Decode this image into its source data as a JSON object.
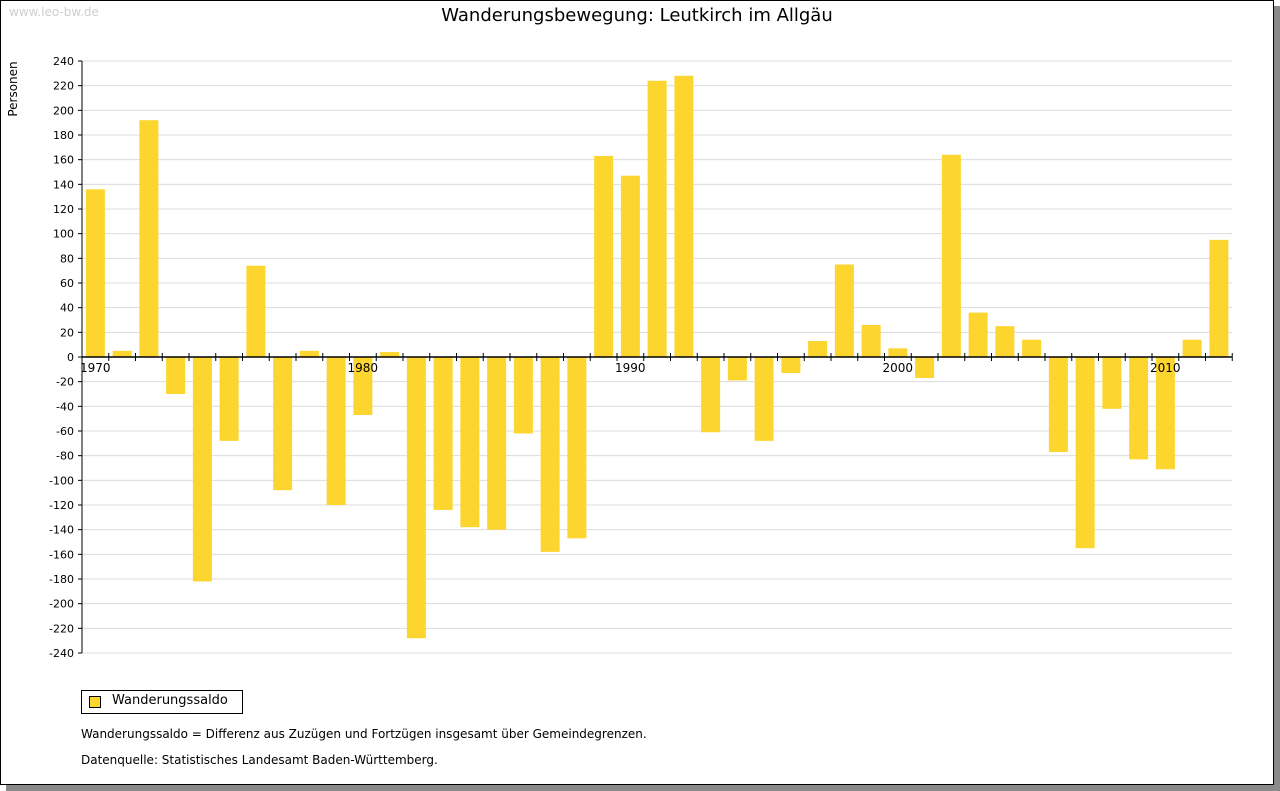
{
  "watermark": "www.leo-bw.de",
  "chart_data": {
    "type": "bar",
    "title": "Wanderungsbewegung: Leutkirch im Allgäu",
    "ylabel": "Personen",
    "xlabel": "",
    "ylim": [
      -240,
      240
    ],
    "ytick_step": 20,
    "yticks": [
      240,
      220,
      200,
      180,
      160,
      140,
      120,
      100,
      80,
      60,
      40,
      20,
      0,
      -20,
      -40,
      -60,
      -80,
      -100,
      -120,
      -140,
      -160,
      -180,
      -200,
      -220,
      -240
    ],
    "x_tick_labels": [
      "1970",
      "1980",
      "1990",
      "2000",
      "2010"
    ],
    "x_start_year": 1970,
    "grid": true,
    "bar_color": "#FDD52F",
    "series": [
      {
        "name": "Wanderungssaldo",
        "years": [
          1970,
          1971,
          1972,
          1973,
          1974,
          1975,
          1976,
          1977,
          1978,
          1979,
          1980,
          1981,
          1982,
          1983,
          1984,
          1985,
          1986,
          1987,
          1988,
          1989,
          1990,
          1991,
          1992,
          1993,
          1994,
          1995,
          1996,
          1997,
          1998,
          1999,
          2000,
          2001,
          2002,
          2003,
          2004,
          2005,
          2006,
          2007,
          2008,
          2009,
          2010,
          2011,
          2012
        ],
        "values": [
          136,
          5,
          192,
          -30,
          -182,
          -68,
          74,
          -108,
          5,
          -120,
          -47,
          4,
          -228,
          -124,
          -138,
          -140,
          -62,
          -158,
          -147,
          163,
          147,
          224,
          228,
          -61,
          -19,
          -68,
          -13,
          13,
          75,
          26,
          7,
          -17,
          164,
          36,
          25,
          14,
          -77,
          -155,
          -42,
          -83,
          -91,
          14,
          95
        ]
      }
    ],
    "legend_position": "bottom-left"
  },
  "legend": {
    "label": "Wanderungssaldo",
    "color": "#FDD52F"
  },
  "notes": {
    "definition": "Wanderungssaldo = Differenz aus Zuzügen und Fortzügen insgesamt über Gemeindegrenzen.",
    "source": "Datenquelle: Statistisches Landesamt Baden-Württemberg."
  }
}
